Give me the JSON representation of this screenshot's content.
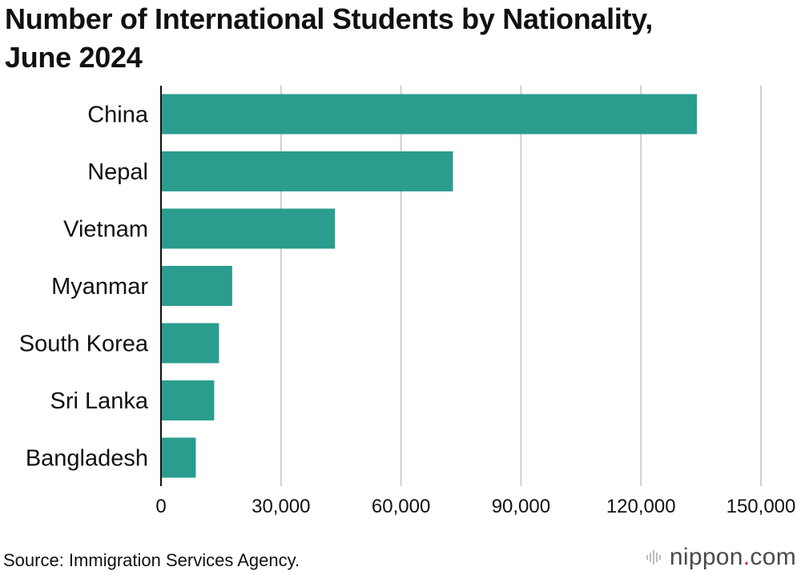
{
  "title_line1": "Number of International Students by Nationality,",
  "title_line2": "June 2024",
  "source": "Source: Immigration Services Agency.",
  "logo": {
    "prefix": "nippon",
    "dot": ".",
    "suffix": "com",
    "icon": "sound-wave-icon",
    "accent": "#e60012"
  },
  "colors": {
    "bar": "#2a9d8f",
    "grid": "#cfcfcf",
    "axis": "#111111"
  },
  "chart_data": {
    "type": "bar",
    "orientation": "horizontal",
    "categories": [
      "China",
      "Nepal",
      "Vietnam",
      "Myanmar",
      "South Korea",
      "Sri Lanka",
      "Bangladesh"
    ],
    "values": [
      134000,
      73000,
      43500,
      17800,
      14500,
      13300,
      8700
    ],
    "xlim": [
      0,
      150000
    ],
    "xticks": [
      0,
      30000,
      60000,
      90000,
      120000,
      150000
    ],
    "xtick_labels": [
      "0",
      "30,000",
      "60,000",
      "90,000",
      "120,000",
      "150,000"
    ],
    "grid": true
  }
}
